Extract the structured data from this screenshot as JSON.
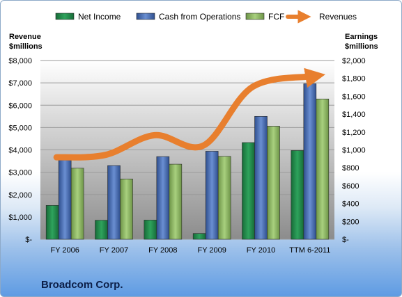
{
  "chart_data": {
    "type": "bar",
    "title": "",
    "company": "Broadcom Corp.",
    "categories": [
      "FY 2006",
      "FY 2007",
      "FY 2008",
      "FY 2009",
      "FY 2010",
      "TTM 6-2011"
    ],
    "left_axis": {
      "title_line1": "Revenue",
      "title_line2": "$millions",
      "range": [
        0,
        8000
      ],
      "ticks": [
        0,
        1000,
        2000,
        3000,
        4000,
        5000,
        6000,
        7000,
        8000
      ],
      "tick_labels": [
        "$-",
        "$1,000",
        "$2,000",
        "$3,000",
        "$4,000",
        "$5,000",
        "$6,000",
        "$7,000",
        "$8,000"
      ]
    },
    "right_axis": {
      "title_line1": "Earnings",
      "title_line2": "$millions",
      "range": [
        0,
        2000
      ],
      "ticks": [
        0,
        200,
        400,
        600,
        800,
        1000,
        1200,
        1400,
        1600,
        1800,
        2000
      ],
      "tick_labels": [
        "$-",
        "$200",
        "$400",
        "$600",
        "$800",
        "$1,000",
        "$1,200",
        "$1,400",
        "$1,600",
        "$1,800",
        "$2,000"
      ]
    },
    "series": [
      {
        "name": "Net Income",
        "type": "bar",
        "axis": "right",
        "color": "#1f8a4a",
        "values": [
          379,
          213,
          215,
          65,
          1082,
          993
        ]
      },
      {
        "name": "Cash from Operations",
        "type": "bar",
        "axis": "right",
        "color": "#4a6fb5",
        "values": [
          885,
          825,
          925,
          985,
          1375,
          1740
        ]
      },
      {
        "name": "FCF",
        "type": "bar",
        "axis": "right",
        "color": "#8db864",
        "values": [
          795,
          675,
          840,
          928,
          1265,
          1570
        ]
      },
      {
        "name": "Revenues",
        "type": "line",
        "axis": "left",
        "color": "#e87f2e",
        "values": [
          3668,
          3776,
          4658,
          4198,
          6818,
          7300
        ]
      }
    ],
    "legend_position": "top",
    "grid": true
  }
}
